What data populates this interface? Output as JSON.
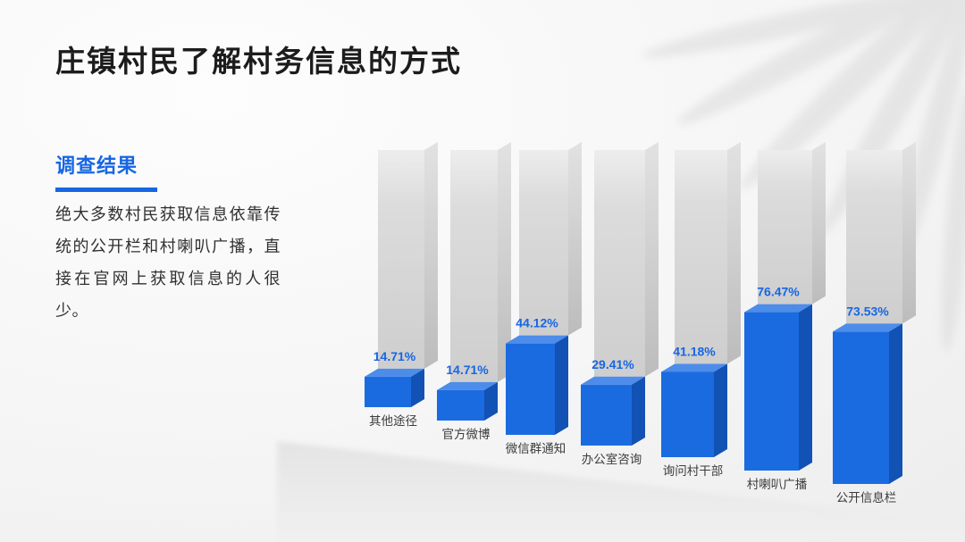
{
  "slide": {
    "title": "庄镇村民了解村务信息的方式",
    "section_label": "调查结果",
    "description": "绝大多数村民获取信息依靠传统的公开栏和村喇叭广播，直接在官网上获取信息的人很少。",
    "accent_color": "#1766E3"
  },
  "chart_data": {
    "type": "bar",
    "variant": "3d-columns-with-full-height-background-pillars",
    "title": "庄镇村民了解村务信息的方式",
    "categories": [
      "其他途径",
      "官方微博",
      "微信群通知",
      "办公室咨询",
      "询问村干部",
      "村喇叭广播",
      "公开信息栏"
    ],
    "values": [
      14.71,
      14.71,
      44.12,
      29.41,
      41.18,
      76.47,
      73.53
    ],
    "value_labels": [
      "14.71%",
      "14.71%",
      "44.12%",
      "29.41%",
      "41.18%",
      "76.47%",
      "73.53%"
    ],
    "unit": "%",
    "ylim": [
      0,
      100
    ],
    "grid": false,
    "legend": null,
    "xlabel": "",
    "ylabel": "",
    "bar_color": "#1B6BE0",
    "bar_side_color": "#1252B4",
    "bar_top_color": "#4E8CEA",
    "pillar_color": "#D5D5D5",
    "value_label_color": "#1766E3",
    "category_label_color": "#3C3C3C"
  }
}
